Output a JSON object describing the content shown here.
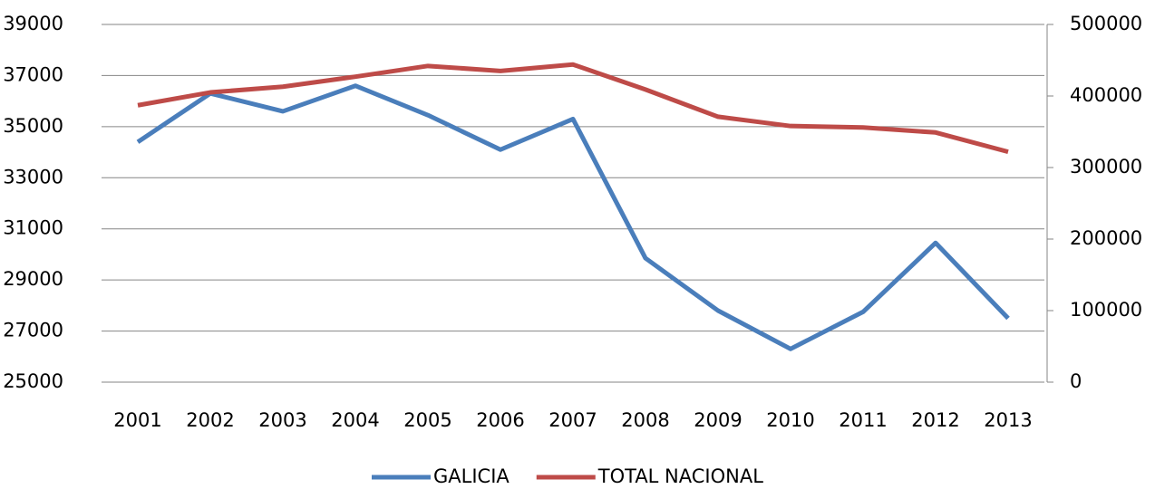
{
  "chart_data": {
    "type": "line",
    "x": [
      "2001",
      "2002",
      "2003",
      "2004",
      "2005",
      "2006",
      "2007",
      "2008",
      "2009",
      "2010",
      "2011",
      "2012",
      "2013"
    ],
    "series": [
      {
        "name": "GALICIA",
        "color": "#4a7ebb",
        "values": [
          34400,
          36300,
          35600,
          36600,
          35450,
          34100,
          35300,
          29850,
          27800,
          26300,
          27750,
          30450,
          27500
        ]
      },
      {
        "name": "TOTAL NACIONAL",
        "color": "#be4b48",
        "axis": "y2",
        "values": [
          387000,
          405000,
          413000,
          427000,
          442000,
          435000,
          444000,
          409000,
          371000,
          358000,
          356000,
          349000,
          322000
        ]
      }
    ],
    "ylim": [
      25000,
      39000
    ],
    "yticks": [
      25000,
      27000,
      29000,
      31000,
      33000,
      35000,
      37000,
      39000
    ],
    "y2lim": [
      0,
      500000
    ],
    "y2ticks": [
      0,
      100000,
      200000,
      300000,
      400000,
      500000
    ],
    "grid": true,
    "legend": "bottom"
  }
}
